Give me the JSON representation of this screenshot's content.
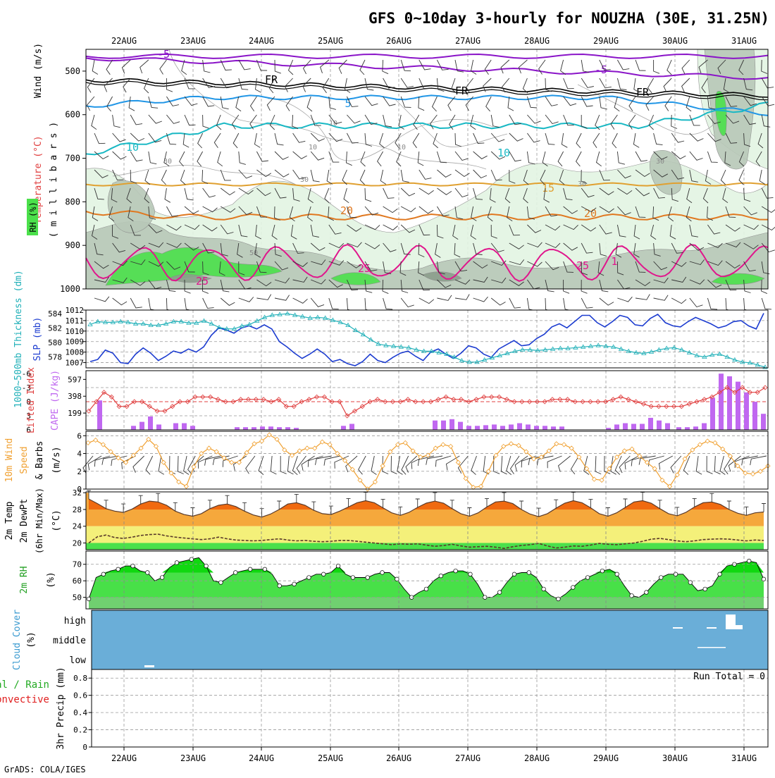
{
  "title": "GFS 0~10day 3-hourly for NOUZHA (30E, 31.25N)",
  "credit": "GrADS: COLA/IGES",
  "dates": [
    "22AUG",
    "23AUG",
    "24AUG",
    "25AUG",
    "26AUG",
    "27AUG",
    "28AUG",
    "29AUG",
    "30AUG",
    "31AUG"
  ],
  "colors": {
    "rh_green": "#4be04b",
    "light_green": "#e3f4e3",
    "grey_green": "#b8c8b8",
    "dark_grey": "#8c9e8c",
    "purple": "#8a14c8",
    "black": "#000000",
    "blue": "#2196e6",
    "cyan": "#18b8c4",
    "amber": "#e0a030",
    "orange": "#e07820",
    "magenta": "#e0168c",
    "slp_blue": "#1c3cd0",
    "thick_cyan": "#20b0b8",
    "cape": "#c068f0",
    "li_red": "#e04040",
    "wind_orange": "#f0a030",
    "cloud_blue": "#6aaed8"
  },
  "panels": {
    "upper": {
      "ylabel_rh": "RH (%)",
      "ylabel_temp": "Temperature (°C)",
      "ylabel_wind": "Wind (m/s)",
      "ylabel_mb": "( m i l l i b a r s )",
      "pressure_levels": [
        "500",
        "600",
        "700",
        "800",
        "900",
        "1000"
      ],
      "contour_labels": [
        "-5",
        "-5",
        "FR",
        "FR",
        "FR",
        "5",
        "10",
        "10",
        "15",
        "20",
        "20",
        "25",
        "25",
        "25",
        "1",
        "30",
        "30",
        "30",
        "10",
        "10",
        "10",
        "50",
        "30"
      ]
    },
    "slp": {
      "ylabel_thick": "1000~500mb Thickness (dm)",
      "ylabel_slp": "SLP (mb)",
      "left_ticks": [
        "584",
        "582",
        "580",
        "578"
      ],
      "right_ticks": [
        "1012",
        "1011",
        "1010",
        "1009",
        "1008",
        "1007"
      ]
    },
    "cape": {
      "ylabel_li": "Lifted Index",
      "ylabel_cape": "CAPE (J/kg)",
      "left_ticks": [
        "-6",
        "-3",
        "0",
        "3",
        "6"
      ],
      "right_ticks": [
        "597",
        "398",
        "199"
      ]
    },
    "wind": {
      "ylabel1": "10m Wind",
      "ylabel2": "Speed",
      "ylabel3": "& Barbs",
      "ylabel4": "(m/s)",
      "ticks": [
        "6",
        "4",
        "2",
        "0"
      ]
    },
    "temp": {
      "ylabel1": "2m Temp",
      "ylabel2": "2m DewPt",
      "ylabel3": "(6hr Min/Max)",
      "ylabel4": "(°C)",
      "ticks": [
        "32",
        "28",
        "24",
        "20"
      ]
    },
    "rh": {
      "ylabel1": "2m RH",
      "ylabel2": "(%)",
      "ticks": [
        "70",
        "60",
        "50"
      ]
    },
    "cloud": {
      "ylabel1": "Cloud Cover",
      "ylabel2": "(%)",
      "levels": [
        "high",
        "middle",
        "low"
      ]
    },
    "precip": {
      "ylabel1": "Total / Rain",
      "ylabel2": "Convective",
      "ylabel3": "3hr Precip (mm)",
      "ticks": [
        "0.8",
        "0.6",
        "0.4",
        "0.2",
        "0"
      ],
      "run_total": "Run Total = 0"
    }
  },
  "chart_data": {
    "type": "line",
    "x_step_hours": 3,
    "series": [
      {
        "name": "2m Temp (°C)",
        "values": [
          30.5,
          29.4,
          28.2,
          27.6,
          27.3,
          28.1,
          29.3,
          30.0,
          29.8,
          29.0,
          27.6,
          26.8,
          26.4,
          27.0,
          28.2,
          29.0,
          29.3,
          28.7,
          27.6,
          26.7,
          26.2,
          26.9,
          28.0,
          29.3,
          29.6,
          29.0,
          27.8,
          27.0,
          26.8,
          27.6,
          28.6,
          29.6,
          30.1,
          29.6,
          28.4,
          27.2,
          26.6,
          27.3,
          28.5,
          29.5,
          30.0,
          29.5,
          28.2,
          27.0,
          26.4,
          27.2,
          28.6,
          29.8,
          30.0,
          29.4,
          28.0,
          26.9,
          26.3,
          27.0,
          28.3,
          29.5,
          30.1,
          29.6,
          28.4,
          27.0,
          26.4,
          27.2,
          28.5,
          29.8,
          30.1,
          29.5,
          28.2,
          27.0,
          26.5,
          27.3,
          28.6,
          29.6,
          29.8,
          29.2,
          28.0,
          27.1,
          26.6,
          27.2,
          27.4
        ]
      },
      {
        "name": "2m DewPt (°C)",
        "values": [
          20.0,
          21.5,
          21.9,
          21.3,
          21.1,
          21.4,
          21.8,
          22.0,
          22.1,
          21.7,
          21.4,
          21.2,
          21.0,
          20.8,
          21.0,
          21.4,
          21.0,
          20.7,
          20.6,
          20.5,
          20.6,
          20.8,
          21.0,
          20.7,
          20.5,
          20.6,
          20.4,
          20.3,
          20.4,
          20.6,
          20.6,
          20.4,
          20.2,
          20.0,
          19.8,
          19.6,
          19.8,
          19.7,
          19.8,
          19.5,
          19.2,
          19.4,
          19.7,
          19.3,
          19.0,
          19.1,
          19.2,
          19.0,
          18.7,
          19.1,
          19.4,
          19.6,
          19.9,
          19.3,
          18.8,
          19.0,
          19.3,
          19.2,
          19.5,
          19.9,
          19.7,
          19.6,
          19.8,
          20.0,
          20.4,
          20.9,
          21.1,
          20.8,
          20.5,
          20.3,
          20.5,
          20.8,
          20.9,
          21.0,
          20.9,
          20.7,
          20.5,
          20.7,
          20.6
        ]
      },
      {
        "name": "2m RH (%)",
        "values": [
          49,
          62,
          64,
          66,
          67,
          69,
          69,
          66,
          65,
          60,
          62,
          68,
          71,
          72,
          73,
          74,
          69,
          60,
          59,
          62,
          65,
          66,
          67,
          67,
          67,
          64,
          57,
          57,
          58,
          60,
          62,
          64,
          64,
          65,
          69,
          64,
          62,
          62,
          62,
          64,
          65,
          65,
          61,
          55,
          50,
          53,
          55,
          60,
          63,
          65,
          66,
          66,
          64,
          58,
          50,
          50,
          53,
          59,
          64,
          65,
          65,
          62,
          55,
          51,
          49,
          52,
          56,
          60,
          62,
          64,
          66,
          67,
          64,
          57,
          51,
          50,
          53,
          58,
          62,
          64,
          64,
          64,
          59,
          54,
          55,
          57,
          64,
          69,
          70,
          71,
          72,
          71,
          61
        ]
      },
      {
        "name": "10m Wind Speed (m/s)",
        "values": [
          5.2,
          5.5,
          5.0,
          4.2,
          3.5,
          3.0,
          3.8,
          4.6,
          5.6,
          4.8,
          3.0,
          1.8,
          0.8,
          0.3,
          2.5,
          4.0,
          4.6,
          4.2,
          3.5,
          3.0,
          3.0,
          4.1,
          5.1,
          5.4,
          6.1,
          5.6,
          4.4,
          3.8,
          4.3,
          4.6,
          4.6,
          5.3,
          5.0,
          4.0,
          3.2,
          2.2,
          1.0,
          0.0,
          0.8,
          2.6,
          4.2,
          5.0,
          5.2,
          4.3,
          3.6,
          3.8,
          4.6,
          5.0,
          4.8,
          3.0,
          1.2,
          0.2,
          0.3,
          2.0,
          3.8,
          4.8,
          5.1,
          4.9,
          4.2,
          3.4,
          3.6,
          4.3,
          5.1,
          5.0,
          4.6,
          3.6,
          2.3,
          1.1,
          1.0,
          2.3,
          3.6,
          4.3,
          4.5,
          3.7,
          3.0,
          2.3,
          1.0,
          0.3,
          1.6,
          3.4,
          4.4,
          5.0,
          5.4,
          5.2,
          4.5,
          3.7,
          2.6,
          1.8,
          1.7,
          2.0,
          2.6
        ]
      },
      {
        "name": "SLP (mb)",
        "values": [
          1007.1,
          1007.3,
          1008.2,
          1007.9,
          1007.0,
          1006.9,
          1007.8,
          1008.4,
          1007.9,
          1007.2,
          1007.6,
          1008.1,
          1007.9,
          1008.3,
          1008.0,
          1008.5,
          1009.6,
          1010.3,
          1010.1,
          1009.8,
          1010.3,
          1010.5,
          1010.2,
          1010.6,
          1010.2,
          1009.0,
          1008.5,
          1007.9,
          1007.4,
          1007.8,
          1008.3,
          1007.8,
          1007.1,
          1007.3,
          1006.9,
          1006.7,
          1007.1,
          1007.8,
          1007.2,
          1007.0,
          1007.5,
          1007.9,
          1008.1,
          1007.6,
          1007.2,
          1008.0,
          1008.3,
          1007.8,
          1007.4,
          1007.9,
          1008.6,
          1008.4,
          1007.8,
          1007.5,
          1008.3,
          1008.7,
          1009.1,
          1008.6,
          1008.7,
          1009.3,
          1009.7,
          1010.4,
          1010.7,
          1010.3,
          1010.9,
          1011.5,
          1011.5,
          1010.8,
          1010.4,
          1010.9,
          1011.5,
          1011.3,
          1010.6,
          1010.5,
          1011.2,
          1011.6,
          1010.8,
          1010.5,
          1010.4,
          1010.9,
          1011.3,
          1011.0,
          1010.7,
          1010.3,
          1010.5,
          1010.9,
          1011.0,
          1010.5,
          1010.2,
          1011.7
        ]
      },
      {
        "name": "1000~500mb Thickness (dm)",
        "values": [
          582.5,
          582.9,
          582.8,
          582.8,
          582.9,
          582.8,
          582.6,
          582.6,
          582.4,
          582.4,
          582.6,
          582.9,
          582.9,
          582.7,
          582.7,
          583.0,
          582.6,
          582.1,
          581.9,
          581.9,
          582.3,
          582.5,
          583.0,
          583.5,
          583.8,
          583.9,
          584.0,
          583.8,
          583.6,
          583.4,
          583.5,
          583.4,
          583.1,
          582.8,
          582.4,
          581.7,
          581.1,
          580.4,
          579.8,
          579.6,
          579.5,
          579.4,
          579.3,
          579.0,
          578.8,
          578.8,
          578.6,
          578.4,
          578.0,
          577.5,
          577.3,
          577.3,
          577.6,
          577.9,
          578.2,
          578.5,
          578.8,
          579.0,
          579.0,
          578.9,
          579.0,
          579.1,
          579.2,
          579.2,
          579.3,
          579.4,
          579.5,
          579.6,
          579.5,
          579.4,
          579.1,
          578.8,
          578.6,
          578.5,
          578.7,
          579.0,
          579.2,
          579.3,
          579.0,
          578.6,
          578.2,
          578.0,
          578.3,
          578.4,
          578.0,
          577.6,
          577.3,
          577.2,
          576.9,
          576.6
        ]
      },
      {
        "name": "Lifted Index",
        "values": [
          2,
          0,
          -2,
          -1,
          1,
          1,
          0,
          0,
          1,
          2,
          2,
          1,
          0,
          0,
          -1,
          -1,
          -1,
          -0.5,
          0,
          0,
          -0.5,
          -0.5,
          -0.5,
          -0.5,
          0,
          -0.5,
          1,
          1,
          0,
          -0.5,
          -1,
          -1,
          0,
          0,
          3,
          2,
          1,
          0,
          -0.5,
          0,
          0,
          0,
          -0.5,
          0,
          0,
          0,
          -0.5,
          -1,
          -0.5,
          -0.5,
          0,
          -0.5,
          -1,
          -1,
          -1,
          -0.5,
          0,
          0,
          0,
          0,
          0,
          -0.5,
          -0.5,
          -0.5,
          0,
          0,
          0,
          0,
          0,
          -0.5,
          -1,
          -0.5,
          0,
          0.5,
          1,
          1,
          1,
          1,
          1,
          0.5,
          0,
          -0.5,
          -1,
          -2,
          -3,
          -2,
          -3,
          -2,
          -2,
          -3
        ]
      },
      {
        "name": "CAPE (J/kg)",
        "values": [
          130,
          0,
          0,
          0,
          0,
          0,
          10,
          30,
          80,
          140,
          40,
          0,
          60,
          60,
          40,
          0,
          0,
          0,
          0,
          0,
          0,
          0,
          0,
          0,
          0,
          0,
          0,
          0,
          0,
          0,
          0,
          0,
          0,
          0,
          0,
          0,
          0,
          0,
          0,
          0,
          0,
          0,
          0,
          0,
          0,
          0,
          0,
          0,
          0,
          0,
          0,
          0,
          0,
          0,
          0,
          0,
          0,
          0,
          0,
          0,
          0,
          0,
          0,
          0,
          0,
          0,
          0,
          0,
          0,
          0,
          0,
          0,
          0,
          0,
          0,
          0,
          0,
          0,
          0,
          0,
          0,
          0,
          0,
          0,
          0,
          0,
          0,
          0,
          0,
          0
        ]
      },
      {
        "name": "3hr Precip (mm)",
        "values": [
          0,
          0,
          0,
          0,
          0,
          0,
          0,
          0,
          0,
          0
        ]
      }
    ],
    "axes": {
      "pressure_mb": [
        500,
        1000
      ],
      "slp_mb": [
        1006.5,
        1012
      ],
      "thickness_dm": [
        576.5,
        584.5
      ],
      "lifted_index": [
        -6,
        6
      ],
      "cape": [
        0,
        700
      ],
      "wind_ms": [
        0,
        6.5
      ],
      "temp_c": [
        18.4,
        32.2
      ],
      "rh_pct": [
        43,
        78
      ],
      "precip_mm": [
        0,
        0.9
      ]
    },
    "title": "GFS 0~10day 3-hourly for NOUZHA (30E, 31.25N)",
    "xlabel": "",
    "ylabel": ""
  }
}
